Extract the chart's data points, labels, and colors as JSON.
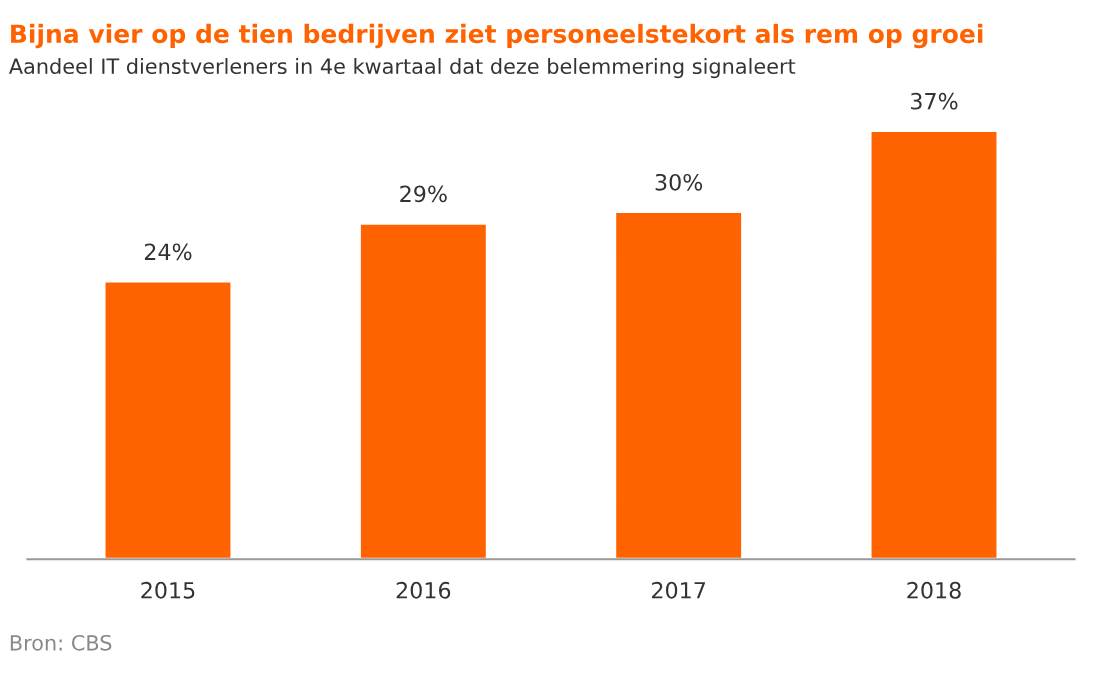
{
  "chart_data": {
    "type": "bar",
    "title": "Bijna vier op de tien bedrijven ziet personeelstekort als rem op groei",
    "subtitle": "Aandeel IT dienstverleners in 4e kwartaal dat deze belemmering signaleert",
    "categories": [
      "2015",
      "2016",
      "2017",
      "2018"
    ],
    "series": [
      {
        "color": "#ff6200",
        "values": [
          24,
          29,
          30,
          37
        ],
        "value_labels": [
          "24%",
          "29%",
          "30%",
          "37%"
        ]
      }
    ],
    "annotations": [
      "Bron: CBS"
    ],
    "grid": false,
    "legend": false
  }
}
